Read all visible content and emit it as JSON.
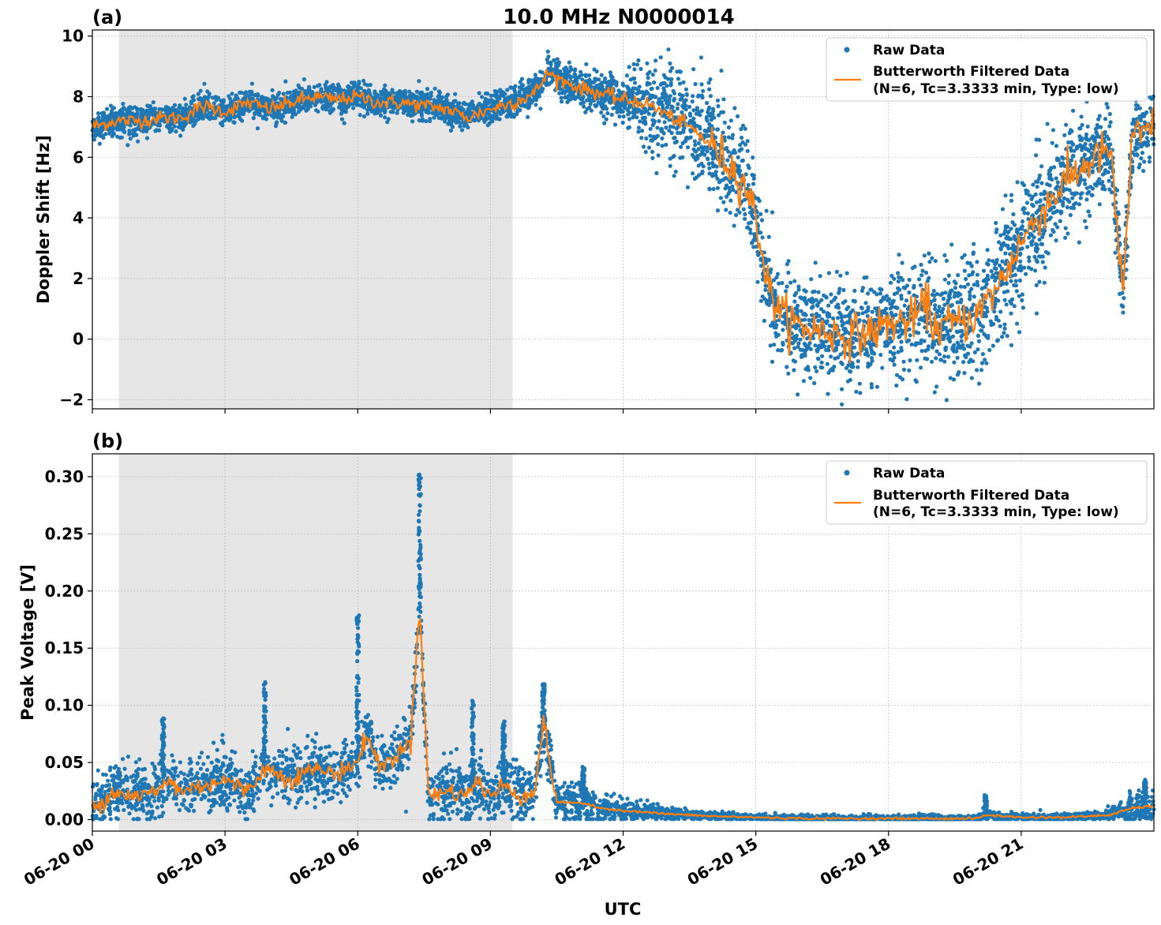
{
  "figure_title": "10.0 MHz N0000014",
  "xlabel": "UTC",
  "x_tick_labels": [
    "06-20 00",
    "06-20 03",
    "06-20 06",
    "06-20 09",
    "06-20 12",
    "06-20 15",
    "06-20 18",
    "06-20 21"
  ],
  "colors": {
    "raw": "#1f77b4",
    "filtered": "#ff7f0e",
    "night_shade": "#e6e6e6",
    "grid": "#b0b0b0"
  },
  "legend": {
    "raw_label": "Raw Data",
    "filtered_label_line1": "Butterworth Filtered Data",
    "filtered_label_line2": "(N=6, Tc=3.3333 min, Type: low)",
    "placement": "top-right"
  },
  "chart_data": [
    {
      "type": "scatter",
      "panel_label": "(a)",
      "ylabel": "Doppler Shift [Hz]",
      "xlim": [
        0,
        24
      ],
      "ylim": [
        -2.3,
        10.2
      ],
      "y_ticks": [
        -2,
        0,
        2,
        4,
        6,
        8,
        10
      ],
      "y_tick_labels": [
        "−2",
        "0",
        "2",
        "4",
        "6",
        "8",
        "10"
      ],
      "grid": true,
      "shaded_interval_hours": [
        0.6,
        9.5
      ],
      "series": [
        {
          "name": "Butterworth Filtered Data (N=6, Tc=3.3333 min, Type: low)",
          "x_hours": [
            0,
            0.5,
            1,
            1.5,
            2,
            2.5,
            3,
            3.5,
            4,
            4.5,
            5,
            5.5,
            6,
            6.5,
            7,
            7.5,
            8,
            8.5,
            9,
            9.5,
            10,
            10.3,
            10.5,
            11,
            11.5,
            12,
            12.5,
            13,
            13.5,
            14,
            14.5,
            14.8,
            15,
            15.3,
            15.6,
            16,
            16.5,
            17,
            17.5,
            18,
            18.5,
            18.9,
            19,
            19.5,
            20,
            20.5,
            21,
            21.5,
            22,
            22.5,
            23,
            23.3,
            23.5,
            24
          ],
          "y": [
            7.0,
            7.2,
            7.2,
            7.3,
            7.3,
            7.7,
            7.5,
            7.8,
            7.6,
            7.8,
            8.0,
            7.9,
            8.0,
            7.8,
            7.8,
            7.7,
            7.6,
            7.3,
            7.6,
            7.8,
            8.1,
            8.8,
            8.6,
            8.3,
            8.1,
            7.9,
            7.8,
            7.4,
            7.0,
            6.4,
            5.6,
            5.0,
            4.0,
            1.6,
            0.8,
            0.4,
            0.3,
            0.1,
            0.2,
            0.5,
            0.6,
            1.2,
            0.4,
            0.5,
            0.8,
            1.8,
            3.2,
            4.3,
            5.2,
            5.8,
            6.3,
            1.5,
            6.5,
            7.0
          ]
        },
        {
          "name": "Raw Data",
          "note": "dense point cloud around the filtered curve with spread widening after 13 UTC",
          "spread_hz": [
            [
              0,
              0.4
            ],
            [
              9.5,
              0.4
            ],
            [
              12,
              0.6
            ],
            [
              13,
              1.5
            ],
            [
              15,
              1.2
            ],
            [
              18,
              1.4
            ],
            [
              21,
              1.8
            ],
            [
              24,
              0.8
            ]
          ]
        }
      ]
    },
    {
      "type": "scatter",
      "panel_label": "(b)",
      "ylabel": "Peak Voltage [V]",
      "xlim": [
        0,
        24
      ],
      "ylim": [
        -0.01,
        0.32
      ],
      "y_ticks": [
        0.0,
        0.05,
        0.1,
        0.15,
        0.2,
        0.25,
        0.3
      ],
      "y_tick_labels": [
        "0.00",
        "0.05",
        "0.10",
        "0.15",
        "0.20",
        "0.25",
        "0.30"
      ],
      "grid": true,
      "shaded_interval_hours": [
        0.6,
        9.5
      ],
      "series": [
        {
          "name": "Butterworth Filtered Data (N=6, Tc=3.3333 min, Type: low)",
          "x_hours": [
            0,
            0.5,
            1,
            1.5,
            1.7,
            2,
            2.5,
            3,
            3.5,
            3.9,
            4.5,
            5,
            5.5,
            6,
            6.2,
            6.5,
            7,
            7.2,
            7.4,
            7.6,
            8,
            8.5,
            8.7,
            9,
            9.3,
            9.7,
            10,
            10.2,
            10.5,
            11,
            11.5,
            12,
            13,
            14,
            15,
            16,
            18,
            20,
            20.2,
            21,
            22,
            23,
            23.5,
            24
          ],
          "y": [
            0.01,
            0.025,
            0.02,
            0.025,
            0.035,
            0.025,
            0.03,
            0.035,
            0.025,
            0.045,
            0.035,
            0.045,
            0.04,
            0.05,
            0.075,
            0.045,
            0.06,
            0.07,
            0.19,
            0.02,
            0.025,
            0.022,
            0.035,
            0.02,
            0.03,
            0.02,
            0.025,
            0.085,
            0.015,
            0.015,
            0.01,
            0.008,
            0.005,
            0.003,
            0.002,
            0.001,
            0.001,
            0.001,
            0.004,
            0.002,
            0.002,
            0.004,
            0.01,
            0.012
          ]
        },
        {
          "name": "Raw Data",
          "note": "dense point cloud around the filtered curve with spikes",
          "spikes": [
            [
              1.6,
              0.09
            ],
            [
              3.9,
              0.125
            ],
            [
              6.0,
              0.18
            ],
            [
              7.4,
              0.305
            ],
            [
              8.6,
              0.105
            ],
            [
              9.3,
              0.09
            ],
            [
              10.2,
              0.12
            ],
            [
              11.1,
              0.047
            ],
            [
              20.2,
              0.022
            ],
            [
              23.8,
              0.035
            ]
          ]
        }
      ]
    }
  ]
}
